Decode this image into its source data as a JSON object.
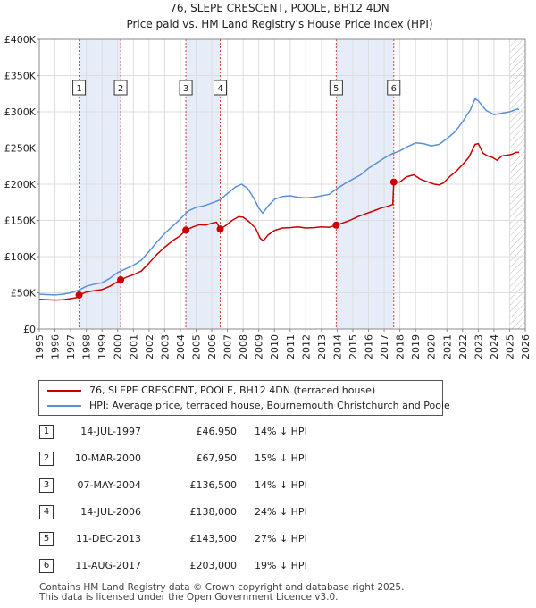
{
  "colors": {
    "price_line": "#cc0000",
    "hpi_line": "#5b8fd6",
    "shade": "#e6edf9",
    "grid": "#dddddd",
    "marker_line": "#d04040"
  },
  "chart_data": {
    "type": "line",
    "title": "76, SLEPE CRESCENT, POOLE, BH12 4DN",
    "subtitle": "Price paid vs. HM Land Registry's House Price Index (HPI)",
    "xlim": [
      1995,
      2026
    ],
    "ylim": [
      0,
      400000
    ],
    "y_ticks": [
      0,
      50000,
      100000,
      150000,
      200000,
      250000,
      300000,
      350000,
      400000
    ],
    "y_tick_labels": [
      "£0",
      "£50K",
      "£100K",
      "£150K",
      "£200K",
      "£250K",
      "£300K",
      "£350K",
      "£400K"
    ],
    "x_ticks": [
      1995,
      1996,
      1997,
      1998,
      1999,
      2000,
      2001,
      2002,
      2003,
      2004,
      2005,
      2006,
      2007,
      2008,
      2009,
      2010,
      2011,
      2012,
      2013,
      2014,
      2015,
      2016,
      2017,
      2018,
      2019,
      2020,
      2021,
      2022,
      2023,
      2024,
      2025,
      2026
    ],
    "x_tick_labels": [
      "1995",
      "1996",
      "1997",
      "1998",
      "1999",
      "2000",
      "2001",
      "2002",
      "2003",
      "2004",
      "2005",
      "2006",
      "2007",
      "2008",
      "2009",
      "2010",
      "2011",
      "2012",
      "2013",
      "2014",
      "2015",
      "2016",
      "2017",
      "2018",
      "2019",
      "2020",
      "2021",
      "2022",
      "2023",
      "2024",
      "2025",
      "2026"
    ],
    "shaded_ranges": [
      [
        1997.54,
        2000.19
      ],
      [
        2004.35,
        2006.54
      ],
      [
        2013.94,
        2017.61
      ]
    ],
    "hatch_from": 2025.0,
    "series": [
      {
        "name": "76, SLEPE CRESCENT, POOLE, BH12 4DN (terraced house)",
        "color": "#cc0000",
        "points": [
          [
            1995.0,
            41000
          ],
          [
            1995.5,
            40500
          ],
          [
            1996.0,
            40000
          ],
          [
            1996.5,
            40500
          ],
          [
            1997.0,
            42000
          ],
          [
            1997.4,
            43500
          ],
          [
            1997.54,
            46950
          ],
          [
            1998.0,
            51000
          ],
          [
            1998.5,
            53000
          ],
          [
            1999.0,
            54500
          ],
          [
            1999.5,
            59000
          ],
          [
            2000.19,
            67950
          ],
          [
            2000.6,
            72000
          ],
          [
            2001.0,
            75000
          ],
          [
            2001.5,
            80000
          ],
          [
            2002.0,
            91000
          ],
          [
            2002.5,
            103000
          ],
          [
            2003.0,
            113000
          ],
          [
            2003.5,
            122000
          ],
          [
            2004.0,
            129000
          ],
          [
            2004.35,
            136500
          ],
          [
            2004.8,
            141000
          ],
          [
            2005.2,
            144000
          ],
          [
            2005.6,
            143500
          ],
          [
            2006.0,
            146000
          ],
          [
            2006.3,
            147500
          ],
          [
            2006.54,
            138000
          ],
          [
            2006.9,
            143000
          ],
          [
            2007.3,
            150000
          ],
          [
            2007.7,
            155000
          ],
          [
            2008.0,
            154500
          ],
          [
            2008.4,
            148000
          ],
          [
            2008.8,
            139000
          ],
          [
            2009.1,
            125000
          ],
          [
            2009.3,
            122000
          ],
          [
            2009.6,
            130000
          ],
          [
            2010.0,
            136000
          ],
          [
            2010.5,
            139500
          ],
          [
            2011.0,
            140000
          ],
          [
            2011.5,
            141000
          ],
          [
            2012.0,
            139500
          ],
          [
            2012.5,
            140000
          ],
          [
            2013.0,
            141000
          ],
          [
            2013.5,
            140500
          ],
          [
            2013.94,
            143500
          ],
          [
            2014.3,
            146000
          ],
          [
            2014.8,
            150000
          ],
          [
            2015.3,
            155000
          ],
          [
            2015.8,
            159000
          ],
          [
            2016.3,
            163000
          ],
          [
            2016.8,
            167000
          ],
          [
            2017.3,
            170000
          ],
          [
            2017.55,
            172000
          ],
          [
            2017.61,
            203000
          ],
          [
            2018.0,
            203000
          ],
          [
            2018.4,
            210000
          ],
          [
            2018.9,
            213000
          ],
          [
            2019.3,
            207000
          ],
          [
            2019.8,
            203000
          ],
          [
            2020.2,
            200000
          ],
          [
            2020.5,
            199000
          ],
          [
            2020.8,
            202000
          ],
          [
            2021.2,
            211000
          ],
          [
            2021.6,
            218000
          ],
          [
            2022.0,
            227000
          ],
          [
            2022.4,
            237000
          ],
          [
            2022.8,
            255000
          ],
          [
            2023.0,
            256000
          ],
          [
            2023.3,
            243000
          ],
          [
            2023.6,
            239000
          ],
          [
            2023.9,
            237000
          ],
          [
            2024.2,
            233000
          ],
          [
            2024.5,
            239000
          ],
          [
            2024.8,
            240000
          ],
          [
            2025.1,
            241000
          ],
          [
            2025.4,
            244000
          ],
          [
            2025.6,
            244000
          ]
        ]
      },
      {
        "name": "HPI: Average price, terraced house, Bournemouth Christchurch and Poole",
        "color": "#5b8fd6",
        "points": [
          [
            1995.0,
            48000
          ],
          [
            1995.5,
            47500
          ],
          [
            1996.0,
            47000
          ],
          [
            1996.5,
            48000
          ],
          [
            1997.0,
            50000
          ],
          [
            1997.5,
            53500
          ],
          [
            1998.0,
            59000
          ],
          [
            1998.5,
            62000
          ],
          [
            1999.0,
            64000
          ],
          [
            1999.5,
            70000
          ],
          [
            2000.0,
            78000
          ],
          [
            2000.5,
            83000
          ],
          [
            2001.0,
            88000
          ],
          [
            2001.5,
            95000
          ],
          [
            2002.0,
            107000
          ],
          [
            2002.5,
            120000
          ],
          [
            2003.0,
            132000
          ],
          [
            2003.5,
            142000
          ],
          [
            2004.0,
            152000
          ],
          [
            2004.5,
            163000
          ],
          [
            2005.0,
            168000
          ],
          [
            2005.5,
            170000
          ],
          [
            2006.0,
            174000
          ],
          [
            2006.5,
            178000
          ],
          [
            2007.0,
            187000
          ],
          [
            2007.5,
            196000
          ],
          [
            2007.9,
            200000
          ],
          [
            2008.3,
            194000
          ],
          [
            2008.7,
            180000
          ],
          [
            2009.0,
            167000
          ],
          [
            2009.25,
            160000
          ],
          [
            2009.6,
            170000
          ],
          [
            2010.0,
            179000
          ],
          [
            2010.5,
            183000
          ],
          [
            2011.0,
            184000
          ],
          [
            2011.5,
            182000
          ],
          [
            2012.0,
            181000
          ],
          [
            2012.5,
            182000
          ],
          [
            2013.0,
            184000
          ],
          [
            2013.5,
            186000
          ],
          [
            2014.0,
            194000
          ],
          [
            2014.5,
            201000
          ],
          [
            2015.0,
            207000
          ],
          [
            2015.5,
            213000
          ],
          [
            2016.0,
            222000
          ],
          [
            2016.5,
            229000
          ],
          [
            2017.0,
            236000
          ],
          [
            2017.5,
            242000
          ],
          [
            2018.0,
            246000
          ],
          [
            2018.5,
            252000
          ],
          [
            2019.0,
            257000
          ],
          [
            2019.5,
            256000
          ],
          [
            2020.0,
            253000
          ],
          [
            2020.5,
            255000
          ],
          [
            2021.0,
            263000
          ],
          [
            2021.5,
            272000
          ],
          [
            2022.0,
            286000
          ],
          [
            2022.5,
            303000
          ],
          [
            2022.8,
            318000
          ],
          [
            2023.0,
            315000
          ],
          [
            2023.5,
            302000
          ],
          [
            2024.0,
            296000
          ],
          [
            2024.5,
            298000
          ],
          [
            2025.0,
            300000
          ],
          [
            2025.5,
            304000
          ],
          [
            2025.6,
            303000
          ]
        ]
      }
    ],
    "transactions": [
      {
        "n": "1",
        "x": 1997.54,
        "price": 46950
      },
      {
        "n": "2",
        "x": 2000.19,
        "price": 67950
      },
      {
        "n": "3",
        "x": 2004.35,
        "price": 136500
      },
      {
        "n": "4",
        "x": 2006.54,
        "price": 138000
      },
      {
        "n": "5",
        "x": 2013.94,
        "price": 143500
      },
      {
        "n": "6",
        "x": 2017.61,
        "price": 203000
      }
    ]
  },
  "legend": {
    "property_label": "76, SLEPE CRESCENT, POOLE, BH12 4DN (terraced house)",
    "hpi_label": "HPI: Average price, terraced house, Bournemouth Christchurch and Poole"
  },
  "table": [
    {
      "num": "1",
      "date": "14-JUL-1997",
      "price": "£46,950",
      "hpi": "14% ↓ HPI"
    },
    {
      "num": "2",
      "date": "10-MAR-2000",
      "price": "£67,950",
      "hpi": "15% ↓ HPI"
    },
    {
      "num": "3",
      "date": "07-MAY-2004",
      "price": "£136,500",
      "hpi": "14% ↓ HPI"
    },
    {
      "num": "4",
      "date": "14-JUL-2006",
      "price": "£138,000",
      "hpi": "24% ↓ HPI"
    },
    {
      "num": "5",
      "date": "11-DEC-2013",
      "price": "£143,500",
      "hpi": "27% ↓ HPI"
    },
    {
      "num": "6",
      "date": "11-AUG-2017",
      "price": "£203,000",
      "hpi": "19% ↓ HPI"
    }
  ],
  "footer": {
    "line1": "Contains HM Land Registry data © Crown copyright and database right 2025.",
    "line2": "This data is licensed under the Open Government Licence v3.0."
  }
}
